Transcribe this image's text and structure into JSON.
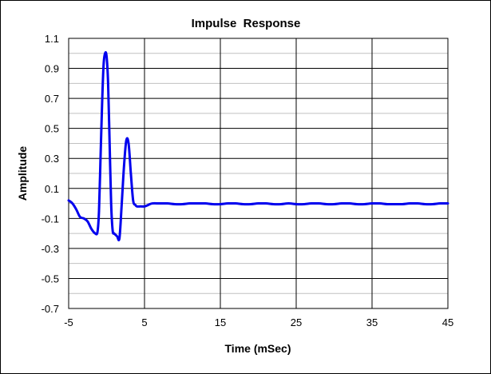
{
  "chart_data": {
    "type": "line",
    "title": "Impulse  Response",
    "xlabel": "Time (mSec)",
    "ylabel": "Amplitude",
    "xlim": [
      -5,
      45
    ],
    "ylim": [
      -0.7,
      1.1
    ],
    "x_ticks": [
      -5,
      5,
      15,
      25,
      35,
      45
    ],
    "x_tick_labels": [
      "-5",
      "5",
      "15",
      "25",
      "35",
      "45"
    ],
    "y_ticks": [
      1.1,
      0.9,
      0.7,
      0.5,
      0.3,
      0.1,
      -0.1,
      -0.3,
      -0.5,
      -0.7
    ],
    "y_tick_labels": [
      "1.1",
      "0.9",
      "0.7",
      "0.5",
      "0.3",
      "0.1",
      "-0.1",
      "-0.3",
      "-0.5",
      "-0.7"
    ],
    "grid": true,
    "legend": "none",
    "colors": {
      "series": "#0000ee",
      "major_grid": "#000000",
      "minor_grid": "#c0c0c0",
      "background": "#ffffff"
    },
    "series": [
      {
        "x": [
          -5,
          -4.5,
          -4,
          -3.5,
          -3,
          -2.5,
          -2,
          -1.5,
          -1.2,
          -1,
          -0.8,
          -0.6,
          -0.4,
          -0.2,
          0,
          0.2,
          0.4,
          0.6,
          0.8,
          1,
          1.2,
          1.4,
          1.7,
          2,
          2.3,
          2.6,
          2.9,
          3.2,
          3.5,
          3.8,
          4,
          4.5,
          5,
          5.5,
          6,
          7,
          8,
          9,
          10,
          11,
          12,
          13,
          14,
          15,
          16,
          17,
          18,
          19,
          20,
          21,
          22,
          23,
          24,
          25,
          26,
          27,
          28,
          29,
          30,
          31,
          32,
          33,
          34,
          35,
          36,
          37,
          38,
          39,
          40,
          41,
          42,
          43,
          44,
          45
        ],
        "y": [
          0.02,
          0.0,
          -0.04,
          -0.09,
          -0.1,
          -0.12,
          -0.17,
          -0.2,
          -0.19,
          -0.05,
          0.3,
          0.65,
          0.92,
          1.0,
          0.98,
          0.8,
          0.4,
          0.0,
          -0.18,
          -0.2,
          -0.21,
          -0.22,
          -0.23,
          0.0,
          0.25,
          0.42,
          0.4,
          0.2,
          0.02,
          -0.01,
          -0.02,
          -0.02,
          -0.02,
          -0.01,
          0.0,
          0.0,
          0.0,
          -0.005,
          -0.005,
          0.0,
          0.0,
          0.0,
          -0.005,
          -0.005,
          0.0,
          0.0,
          -0.005,
          -0.005,
          0.0,
          0.0,
          -0.005,
          -0.005,
          0.0,
          -0.005,
          -0.005,
          0.0,
          0.0,
          -0.005,
          -0.005,
          0.0,
          0.0,
          -0.005,
          -0.005,
          0.0,
          0.0,
          -0.005,
          -0.005,
          -0.005,
          0.0,
          0.0,
          -0.005,
          -0.005,
          0.0,
          0.0
        ]
      }
    ]
  }
}
